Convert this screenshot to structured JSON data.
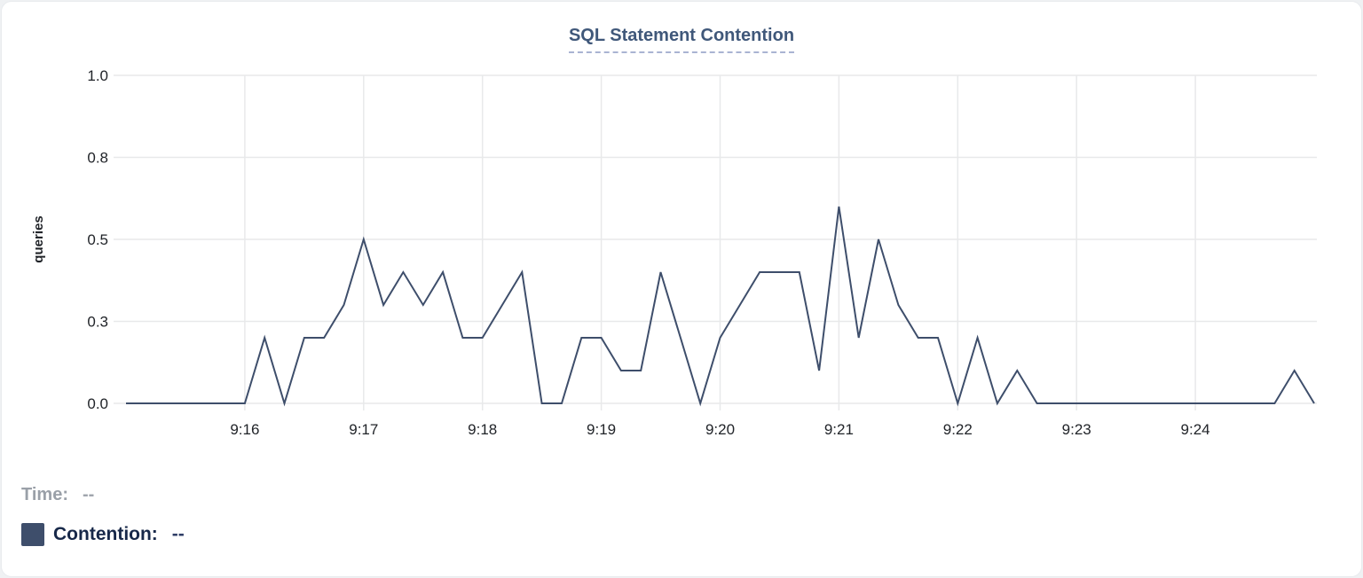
{
  "card": {
    "title": "SQL Statement Contention"
  },
  "colors": {
    "line": "#3e4e6b",
    "grid": "#e8e9ea",
    "axis_text": "#212429",
    "title_text": "#40587a",
    "title_underline": "#a9b3d2",
    "legend_time_gray": "#9aa0a8",
    "legend_contention_navy": "#172849",
    "swatch": "#3e4e6b",
    "card_background": "#ffffff"
  },
  "legend": {
    "rows": [
      {
        "label": "Time:",
        "value": "--"
      },
      {
        "label": "Contention:",
        "value": "--",
        "swatch_color": "#3e4e6b"
      }
    ]
  },
  "chart_data": {
    "type": "line",
    "title": "SQL Statement Contention",
    "xlabel": "",
    "ylabel": "queries",
    "ylim": [
      0,
      1.0
    ],
    "grid": true,
    "legend_position": "bottom-left",
    "x_start": "9:15:00",
    "x_end": "9:25:00",
    "interval_seconds": 10,
    "y_ticks": [
      {
        "value": 1.0,
        "label": "1.0"
      },
      {
        "value": 0.75,
        "label": "0.8"
      },
      {
        "value": 0.5,
        "label": "0.5"
      },
      {
        "value": 0.25,
        "label": "0.3"
      },
      {
        "value": 0.0,
        "label": "0.0"
      }
    ],
    "x_ticks": [
      {
        "seconds": 60,
        "label": "9:16"
      },
      {
        "seconds": 120,
        "label": "9:17"
      },
      {
        "seconds": 180,
        "label": "9:18"
      },
      {
        "seconds": 240,
        "label": "9:19"
      },
      {
        "seconds": 300,
        "label": "9:20"
      },
      {
        "seconds": 360,
        "label": "9:21"
      },
      {
        "seconds": 420,
        "label": "9:22"
      },
      {
        "seconds": 480,
        "label": "9:23"
      },
      {
        "seconds": 540,
        "label": "9:24"
      }
    ],
    "x_times": [
      "9:15:00",
      "9:15:10",
      "9:15:20",
      "9:15:30",
      "9:15:40",
      "9:15:50",
      "9:16:00",
      "9:16:10",
      "9:16:20",
      "9:16:30",
      "9:16:40",
      "9:16:50",
      "9:17:00",
      "9:17:10",
      "9:17:20",
      "9:17:30",
      "9:17:40",
      "9:17:50",
      "9:18:00",
      "9:18:10",
      "9:18:20",
      "9:18:30",
      "9:18:40",
      "9:18:50",
      "9:19:00",
      "9:19:10",
      "9:19:20",
      "9:19:30",
      "9:19:40",
      "9:19:50",
      "9:20:00",
      "9:20:10",
      "9:20:20",
      "9:20:30",
      "9:20:40",
      "9:20:50",
      "9:21:00",
      "9:21:10",
      "9:21:20",
      "9:21:30",
      "9:21:40",
      "9:21:50",
      "9:22:00",
      "9:22:10",
      "9:22:20",
      "9:22:30",
      "9:22:40",
      "9:22:50",
      "9:23:00",
      "9:23:10",
      "9:23:20",
      "9:23:30",
      "9:23:40",
      "9:23:50",
      "9:24:00",
      "9:24:10",
      "9:24:20",
      "9:24:30",
      "9:24:40",
      "9:24:50",
      "9:25:00"
    ],
    "series": [
      {
        "name": "Contention",
        "unit": "queries",
        "color": "#3e4e6b",
        "values": [
          0,
          0,
          0,
          0,
          0,
          0,
          0,
          0.2,
          0,
          0.2,
          0.2,
          0.3,
          0.5,
          0.3,
          0.4,
          0.3,
          0.4,
          0.2,
          0.2,
          0.3,
          0.4,
          0,
          0,
          0.2,
          0.2,
          0.1,
          0.1,
          0.4,
          0.2,
          0,
          0.2,
          0.3,
          0.4,
          0.4,
          0.4,
          0.1,
          0.6,
          0.2,
          0.5,
          0.3,
          0.2,
          0.2,
          0,
          0.2,
          0,
          0.1,
          0,
          0,
          0,
          0,
          0,
          0,
          0,
          0,
          0,
          0,
          0,
          0,
          0,
          0.1,
          0
        ]
      }
    ]
  }
}
